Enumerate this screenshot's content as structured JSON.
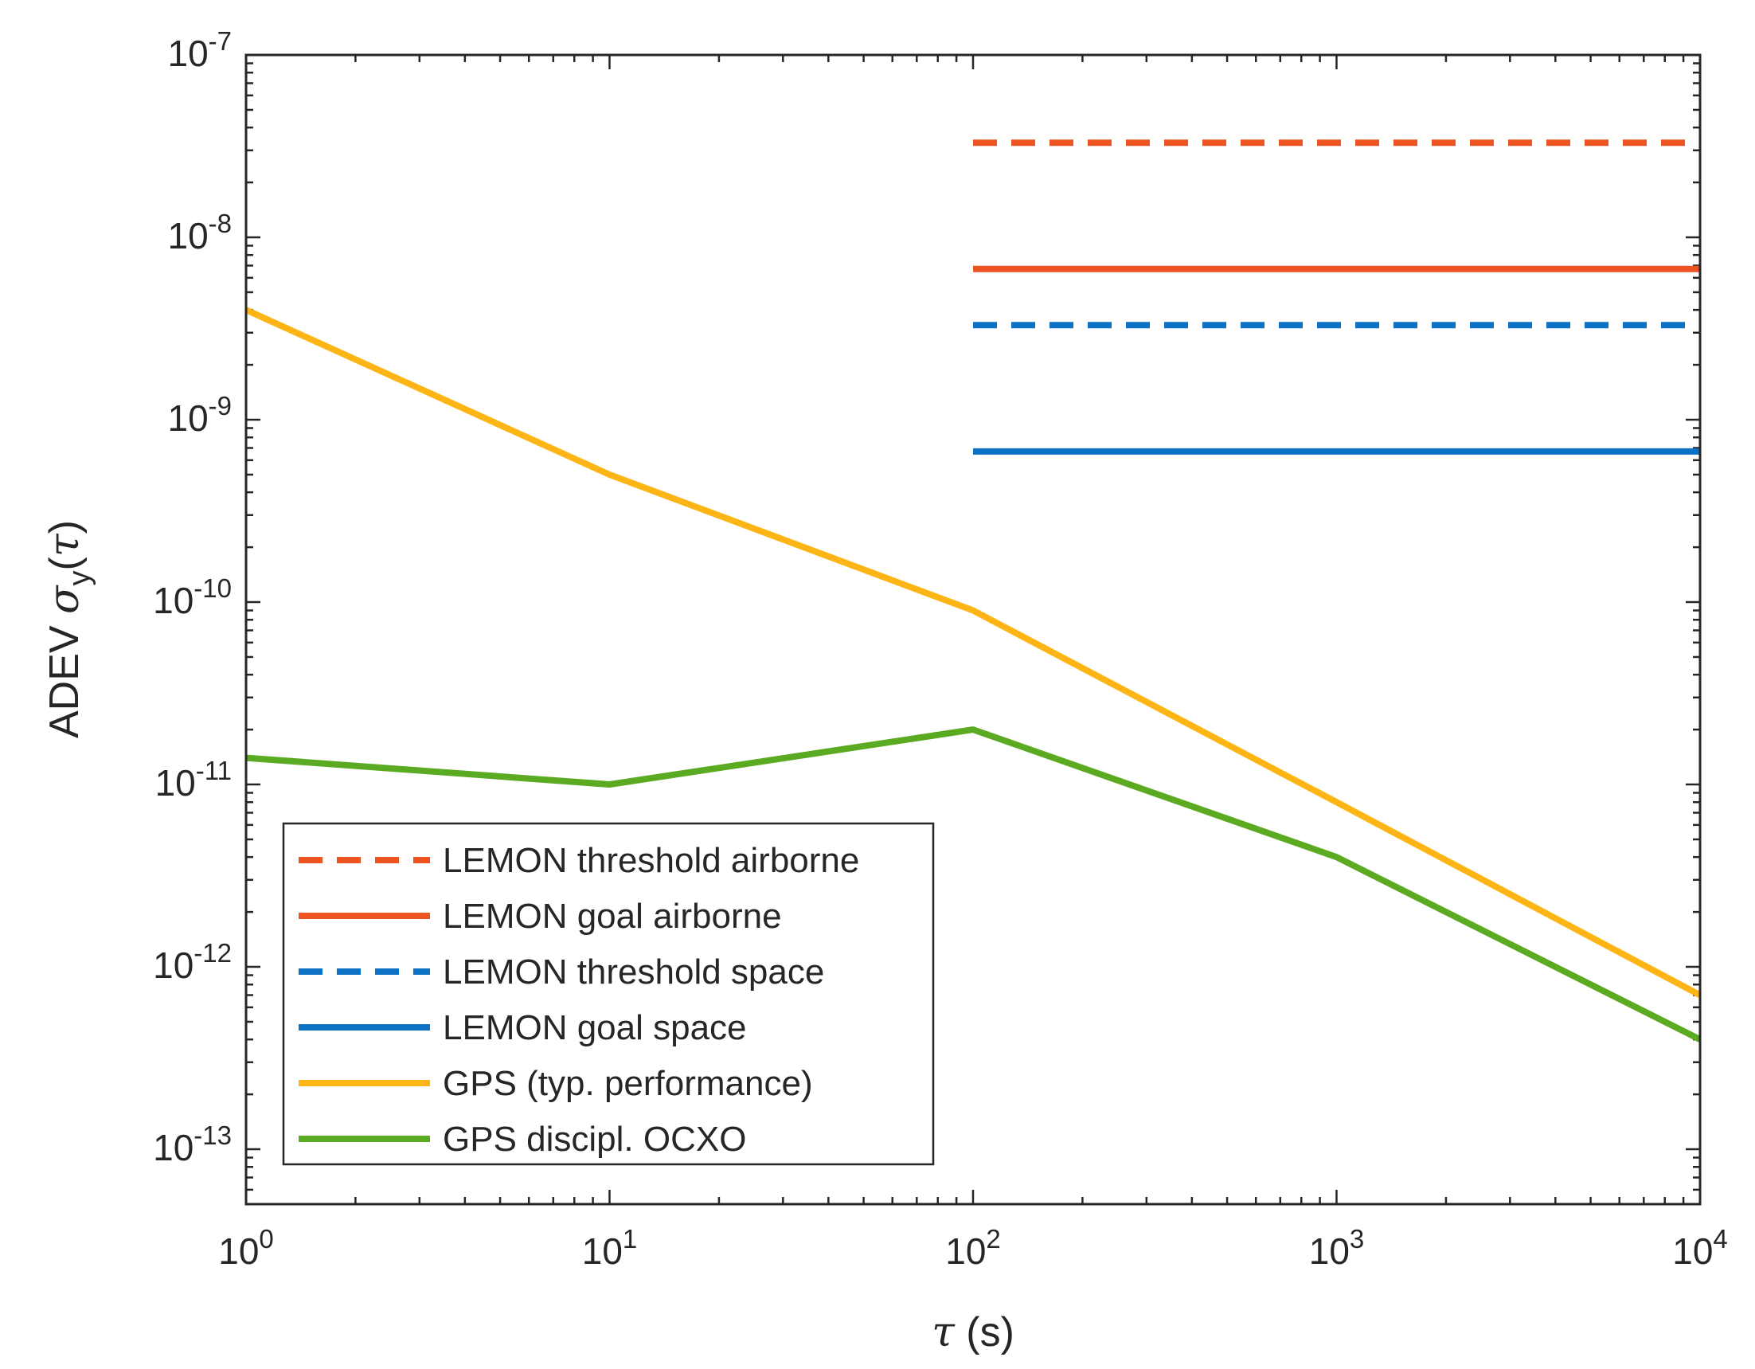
{
  "chart_data": {
    "type": "line",
    "xscale": "log",
    "yscale": "log",
    "xlim": [
      1,
      10000
    ],
    "ylim": [
      5e-14,
      1e-07
    ],
    "xlabel": {
      "symbol": "τ",
      "unit": " (s)"
    },
    "ylabel": {
      "prefix": "ADEV ",
      "sigma": "σ",
      "subscript": "y",
      "open": "(",
      "tau": "τ",
      "close": ")"
    },
    "x_ticks": [
      {
        "value": 1,
        "base": "10",
        "exp": "0"
      },
      {
        "value": 10,
        "base": "10",
        "exp": "1"
      },
      {
        "value": 100,
        "base": "10",
        "exp": "2"
      },
      {
        "value": 1000,
        "base": "10",
        "exp": "3"
      },
      {
        "value": 10000,
        "base": "10",
        "exp": "4"
      }
    ],
    "y_ticks": [
      {
        "value": 1e-13,
        "base": "10",
        "exp": "-13"
      },
      {
        "value": 1e-12,
        "base": "10",
        "exp": "-12"
      },
      {
        "value": 1e-11,
        "base": "10",
        "exp": "-11"
      },
      {
        "value": 1e-10,
        "base": "10",
        "exp": "-10"
      },
      {
        "value": 1e-09,
        "base": "10",
        "exp": "-9"
      },
      {
        "value": 1e-08,
        "base": "10",
        "exp": "-8"
      },
      {
        "value": 1e-07,
        "base": "10",
        "exp": "-7"
      }
    ],
    "legend_position": "bottom-left",
    "series": [
      {
        "name": "LEMON threshold airborne",
        "color": "#EE5322",
        "dash": "dashed",
        "x": [
          100,
          10000
        ],
        "y": [
          3.3e-08,
          3.3e-08
        ]
      },
      {
        "name": "LEMON goal airborne",
        "color": "#EE5322",
        "dash": "solid",
        "x": [
          100,
          10000
        ],
        "y": [
          6.7e-09,
          6.7e-09
        ]
      },
      {
        "name": "LEMON threshold space",
        "color": "#0E72C4",
        "dash": "dashed",
        "x": [
          100,
          10000
        ],
        "y": [
          3.3e-09,
          3.3e-09
        ]
      },
      {
        "name": "LEMON goal space",
        "color": "#0E72C4",
        "dash": "solid",
        "x": [
          100,
          10000
        ],
        "y": [
          6.7e-10,
          6.7e-10
        ]
      },
      {
        "name": "GPS (typ. performance)",
        "color": "#FDB515",
        "dash": "solid",
        "x": [
          1,
          10,
          100,
          1000,
          10000
        ],
        "y": [
          4e-09,
          5e-10,
          9e-11,
          8e-12,
          7e-13
        ]
      },
      {
        "name": "GPS discipl. OCXO",
        "color": "#5AAA22",
        "dash": "solid",
        "x": [
          1,
          10,
          100,
          1000,
          10000
        ],
        "y": [
          1.4e-11,
          1e-11,
          2e-11,
          4e-12,
          4e-13
        ]
      }
    ]
  }
}
